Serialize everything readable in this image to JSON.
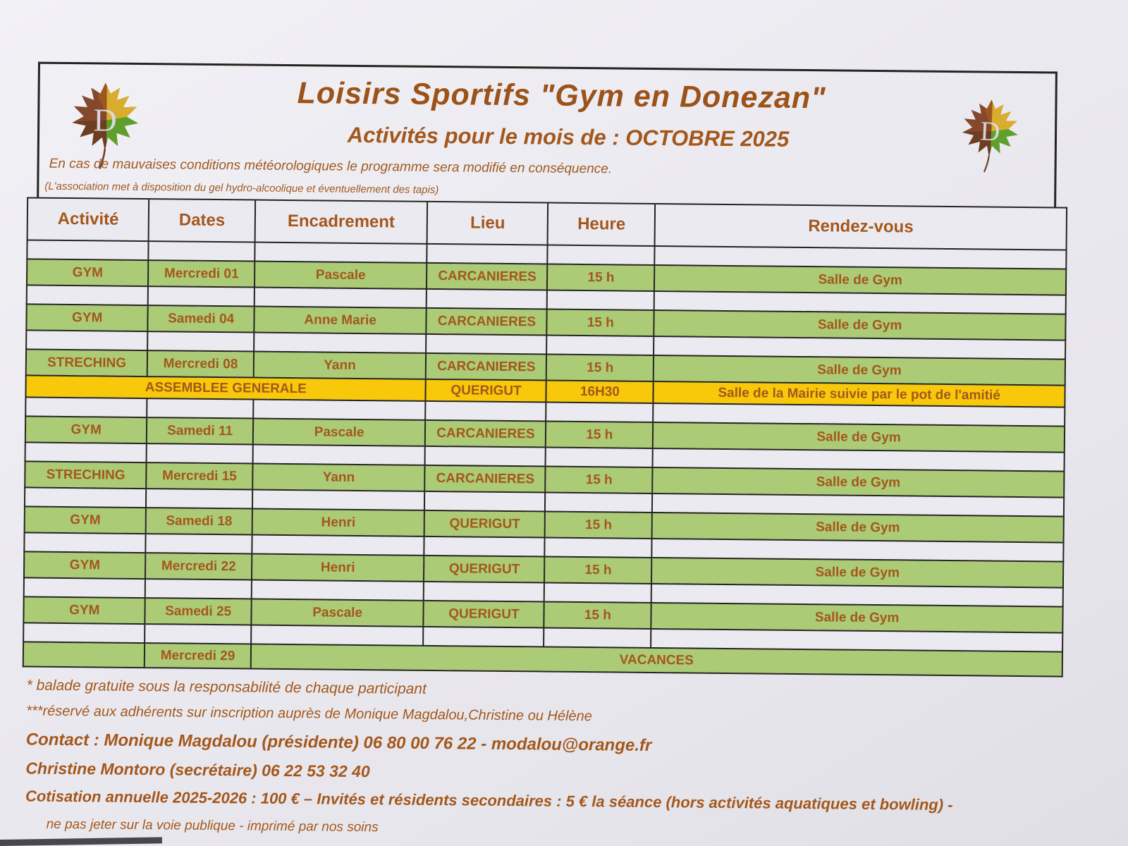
{
  "header": {
    "title": "Loisirs Sportifs \"Gym en Donezan\"",
    "subtitle": "Activités pour le mois de : OCTOBRE 2025",
    "note_weather": "En cas de mauvaises conditions météorologiques le programme sera modifié en conséquence.",
    "note_equipment": "(L'association met à disposition du gel hydro-alcoolique et éventuellement des tapis)",
    "logo_letter": "D"
  },
  "colors": {
    "text_brown": "#a4571b",
    "row_green": "#abcb76",
    "row_yellow": "#f7c90a",
    "paper": "#eceaf1",
    "border": "#242420",
    "leaf_brown": "#84492c",
    "leaf_dark_brown": "#6f3e22",
    "leaf_orange": "#9c571e",
    "leaf_yellow": "#d9ae2e",
    "leaf_green": "#5fa02c",
    "leaf_letter": "#dddce6"
  },
  "table": {
    "headers": [
      "Activité",
      "Dates",
      "Encadrement",
      "Lieu",
      "Heure",
      "Rendez-vous"
    ],
    "rows": [
      {
        "type": "spacer"
      },
      {
        "type": "activity",
        "activite": "GYM",
        "date": "Mercredi 01",
        "encadrement": "Pascale",
        "lieu": "CARCANIERES",
        "heure": "15 h",
        "rdv": "Salle de Gym"
      },
      {
        "type": "spacer"
      },
      {
        "type": "activity",
        "activite": "GYM",
        "date": "Samedi 04",
        "encadrement": "Anne Marie",
        "lieu": "CARCANIERES",
        "heure": "15 h",
        "rdv": "Salle de Gym"
      },
      {
        "type": "spacer"
      },
      {
        "type": "activity",
        "activite": "STRECHING",
        "date": "Mercredi 08",
        "encadrement": "Yann",
        "lieu": "CARCANIERES",
        "heure": "15 h",
        "rdv": "Salle de Gym"
      },
      {
        "type": "assemblee",
        "label": "ASSEMBLEE GENERALE",
        "lieu": "QUERIGUT",
        "heure": "16H30",
        "rdv": "Salle de la Mairie suivie par le pot de l'amitié"
      },
      {
        "type": "spacer"
      },
      {
        "type": "activity",
        "activite": "GYM",
        "date": "Samedi 11",
        "encadrement": "Pascale",
        "lieu": "CARCANIERES",
        "heure": "15 h",
        "rdv": "Salle de Gym"
      },
      {
        "type": "spacer"
      },
      {
        "type": "activity",
        "activite": "STRECHING",
        "date": "Mercredi 15",
        "encadrement": "Yann",
        "lieu": "CARCANIERES",
        "heure": "15 h",
        "rdv": "Salle de Gym"
      },
      {
        "type": "spacer"
      },
      {
        "type": "activity",
        "activite": "GYM",
        "date": "Samedi 18",
        "encadrement": "Henri",
        "lieu": "QUERIGUT",
        "heure": "15 h",
        "rdv": "Salle de Gym"
      },
      {
        "type": "spacer"
      },
      {
        "type": "activity",
        "activite": "GYM",
        "date": "Mercredi 22",
        "encadrement": "Henri",
        "lieu": "QUERIGUT",
        "heure": "15 h",
        "rdv": "Salle de Gym"
      },
      {
        "type": "spacer"
      },
      {
        "type": "activity",
        "activite": "GYM",
        "date": "Samedi 25",
        "encadrement": "Pascale",
        "lieu": "QUERIGUT",
        "heure": "15 h",
        "rdv": "Salle de Gym"
      },
      {
        "type": "spacer"
      },
      {
        "type": "vacances",
        "date": "Mercredi 29",
        "label": "VACANCES"
      }
    ]
  },
  "footer": {
    "lines": [
      "* balade gratuite sous la responsabilité de chaque participant",
      "***réservé aux adhérents sur inscription auprès de Monique Magdalou,Christine ou Hélène",
      "Contact : Monique Magdalou (présidente) 06 80 00 76 22 -  modalou@orange.fr",
      "Christine Montoro (secrétaire)  06 22 53 32 40",
      "Cotisation annuelle 2025-2026 : 100 € – Invités et résidents secondaires : 5 € la séance (hors activités aquatiques et bowling) -",
      "ne pas jeter sur la voie publique -  imprimé par nos soins"
    ]
  }
}
